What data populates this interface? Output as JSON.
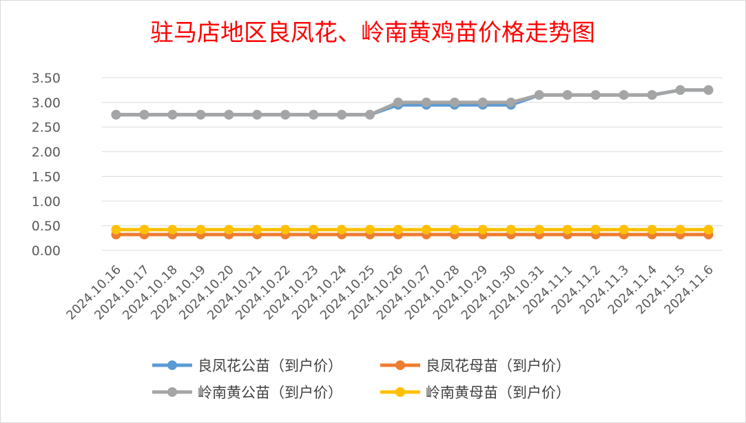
{
  "chart_data": {
    "type": "line",
    "title": "驻马店地区良凤花、岭南黄鸡苗价格走势图",
    "xlabel": "",
    "ylabel": "",
    "categories": [
      "2024.10.16",
      "2024.10.17",
      "2024.10.18",
      "2024.10.19",
      "2024.10.20",
      "2024.10.21",
      "2024.10.22",
      "2024.10.23",
      "2024.10.24",
      "2024.10.25",
      "2024.10.26",
      "2024.10.27",
      "2024.10.28",
      "2024.10.29",
      "2024.10.30",
      "2024.10.31",
      "2024.11.1",
      "2024.11.2",
      "2024.11.3",
      "2024.11.4",
      "2024.11.5",
      "2024.11.6"
    ],
    "yticks": [
      "0.00",
      "0.50",
      "1.00",
      "1.50",
      "2.00",
      "2.50",
      "3.00",
      "3.50"
    ],
    "ylim": [
      0,
      3.5
    ],
    "grid": true,
    "legend_position": "bottom",
    "series": [
      {
        "name": "良凤花公苗（到户价）",
        "color": "#5b9bd5",
        "values": [
          2.75,
          2.75,
          2.75,
          2.75,
          2.75,
          2.75,
          2.75,
          2.75,
          2.75,
          2.75,
          2.95,
          2.95,
          2.95,
          2.95,
          2.95,
          3.15,
          3.15,
          3.15,
          3.15,
          3.15,
          3.25,
          3.25
        ]
      },
      {
        "name": "良凤花母苗（到户价）",
        "color": "#ed7d31",
        "values": [
          0.32,
          0.32,
          0.32,
          0.32,
          0.32,
          0.32,
          0.32,
          0.32,
          0.32,
          0.32,
          0.32,
          0.32,
          0.32,
          0.32,
          0.32,
          0.32,
          0.32,
          0.32,
          0.32,
          0.32,
          0.32,
          0.32
        ]
      },
      {
        "name": "岭南黄公苗（到户价）",
        "color": "#a5a5a5",
        "values": [
          2.75,
          2.75,
          2.75,
          2.75,
          2.75,
          2.75,
          2.75,
          2.75,
          2.75,
          2.75,
          3.0,
          3.0,
          3.0,
          3.0,
          3.0,
          3.15,
          3.15,
          3.15,
          3.15,
          3.15,
          3.25,
          3.25
        ]
      },
      {
        "name": "岭南黄母苗（到户价）",
        "color": "#ffc000",
        "values": [
          0.42,
          0.42,
          0.42,
          0.42,
          0.42,
          0.42,
          0.42,
          0.42,
          0.42,
          0.42,
          0.42,
          0.42,
          0.42,
          0.42,
          0.42,
          0.42,
          0.42,
          0.42,
          0.42,
          0.42,
          0.42,
          0.42
        ]
      }
    ]
  }
}
